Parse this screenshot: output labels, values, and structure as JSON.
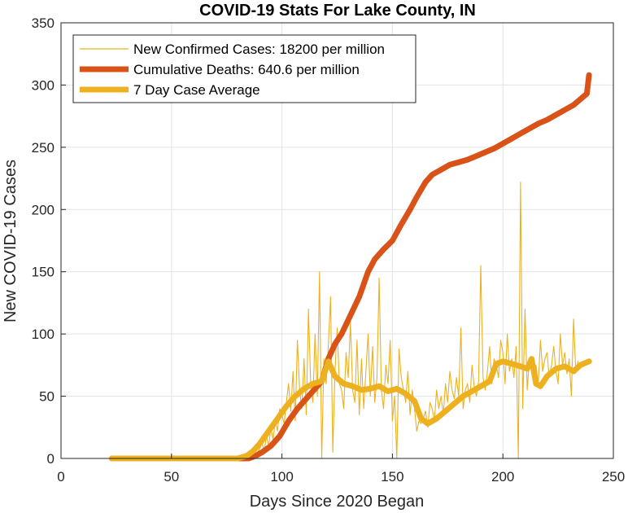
{
  "chart_data": {
    "type": "line",
    "title": "COVID-19 Stats For Lake County, IN",
    "xlabel": "Days Since 2020 Began",
    "ylabel": "New COVID-19 Cases",
    "xlim": [
      0,
      250
    ],
    "ylim": [
      0,
      350
    ],
    "xticks": [
      0,
      50,
      100,
      150,
      200,
      250
    ],
    "yticks": [
      0,
      50,
      100,
      150,
      200,
      250,
      300,
      350
    ],
    "grid": true,
    "legend_position": "top-left",
    "series": [
      {
        "name": "New Confirmed Cases: 18200 per million",
        "color": "#EDB120",
        "style": "thin",
        "x_start": 23,
        "values": [
          0,
          0,
          0,
          0,
          0,
          0,
          0,
          0,
          0,
          0,
          0,
          0,
          0,
          0,
          0,
          0,
          0,
          0,
          0,
          0,
          0,
          0,
          0,
          0,
          0,
          0,
          0,
          0,
          0,
          0,
          0,
          0,
          0,
          0,
          0,
          0,
          0,
          0,
          0,
          0,
          0,
          0,
          0,
          0,
          0,
          0,
          0,
          0,
          0,
          0,
          0,
          0,
          0,
          0,
          0,
          0,
          0,
          0,
          0,
          0,
          1,
          0,
          2,
          1,
          3,
          2,
          5,
          8,
          12,
          6,
          18,
          10,
          25,
          15,
          30,
          22,
          40,
          35,
          28,
          45,
          60,
          38,
          70,
          30,
          95,
          55,
          40,
          80,
          35,
          120,
          60,
          45,
          100,
          50,
          150,
          0,
          80,
          60,
          90,
          130,
          5,
          70,
          105,
          60,
          55,
          40,
          85,
          65,
          110,
          55,
          45,
          95,
          35,
          80,
          40,
          70,
          100,
          50,
          90,
          45,
          65,
          145,
          55,
          40,
          75,
          60,
          95,
          30,
          50,
          0,
          88,
          65,
          55,
          45,
          70,
          35,
          55,
          40,
          22,
          30,
          28,
          32,
          38,
          25,
          45,
          40,
          30,
          55,
          40,
          50,
          35,
          60,
          45,
          70,
          55,
          48,
          65,
          50,
          105,
          40,
          55,
          60,
          45,
          75,
          58,
          50,
          62,
          155,
          65,
          55,
          70,
          90,
          60,
          80,
          75,
          65,
          95,
          85,
          60,
          100,
          70,
          80,
          65,
          90,
          0,
          222,
          40,
          120,
          55,
          80,
          70,
          65,
          75,
          60,
          95,
          70,
          80,
          85,
          65,
          75,
          90,
          70,
          60,
          100,
          75,
          85,
          68,
          80,
          50,
          112,
          70,
          78
        ]
      },
      {
        "name": "Cumulative Deaths: 640.6 per million",
        "color": "#D95319",
        "style": "thick",
        "points": [
          [
            23,
            0
          ],
          [
            85,
            0
          ],
          [
            88,
            2
          ],
          [
            91,
            5
          ],
          [
            95,
            10
          ],
          [
            99,
            18
          ],
          [
            103,
            30
          ],
          [
            107,
            40
          ],
          [
            111,
            48
          ],
          [
            115,
            56
          ],
          [
            118,
            62
          ],
          [
            121,
            80
          ],
          [
            124,
            92
          ],
          [
            127,
            100
          ],
          [
            131,
            115
          ],
          [
            135,
            130
          ],
          [
            139,
            150
          ],
          [
            142,
            160
          ],
          [
            146,
            168
          ],
          [
            150,
            175
          ],
          [
            154,
            188
          ],
          [
            158,
            200
          ],
          [
            161,
            210
          ],
          [
            165,
            222
          ],
          [
            168,
            228
          ],
          [
            172,
            232
          ],
          [
            176,
            236
          ],
          [
            180,
            238
          ],
          [
            184,
            240
          ],
          [
            188,
            243
          ],
          [
            192,
            246
          ],
          [
            196,
            249
          ],
          [
            200,
            253
          ],
          [
            204,
            257
          ],
          [
            208,
            261
          ],
          [
            212,
            265
          ],
          [
            216,
            269
          ],
          [
            220,
            272
          ],
          [
            224,
            276
          ],
          [
            228,
            280
          ],
          [
            232,
            284
          ],
          [
            236,
            290
          ],
          [
            238,
            293
          ],
          [
            239,
            308
          ]
        ]
      },
      {
        "name": "7 Day Case Average",
        "color": "#EDB120",
        "style": "thick",
        "points": [
          [
            23,
            0
          ],
          [
            80,
            0
          ],
          [
            84,
            2
          ],
          [
            87,
            6
          ],
          [
            90,
            12
          ],
          [
            94,
            22
          ],
          [
            98,
            32
          ],
          [
            102,
            42
          ],
          [
            106,
            50
          ],
          [
            110,
            56
          ],
          [
            114,
            60
          ],
          [
            118,
            62
          ],
          [
            121,
            78
          ],
          [
            124,
            66
          ],
          [
            128,
            60
          ],
          [
            132,
            58
          ],
          [
            136,
            55
          ],
          [
            140,
            56
          ],
          [
            144,
            58
          ],
          [
            148,
            54
          ],
          [
            152,
            56
          ],
          [
            156,
            52
          ],
          [
            160,
            46
          ],
          [
            163,
            32
          ],
          [
            166,
            28
          ],
          [
            170,
            32
          ],
          [
            174,
            38
          ],
          [
            178,
            44
          ],
          [
            182,
            50
          ],
          [
            186,
            54
          ],
          [
            190,
            58
          ],
          [
            194,
            62
          ],
          [
            197,
            76
          ],
          [
            200,
            78
          ],
          [
            204,
            76
          ],
          [
            208,
            74
          ],
          [
            211,
            72
          ],
          [
            213,
            80
          ],
          [
            215,
            60
          ],
          [
            217,
            58
          ],
          [
            220,
            66
          ],
          [
            224,
            72
          ],
          [
            228,
            74
          ],
          [
            232,
            70
          ],
          [
            235,
            75
          ],
          [
            239,
            78
          ]
        ]
      }
    ]
  }
}
